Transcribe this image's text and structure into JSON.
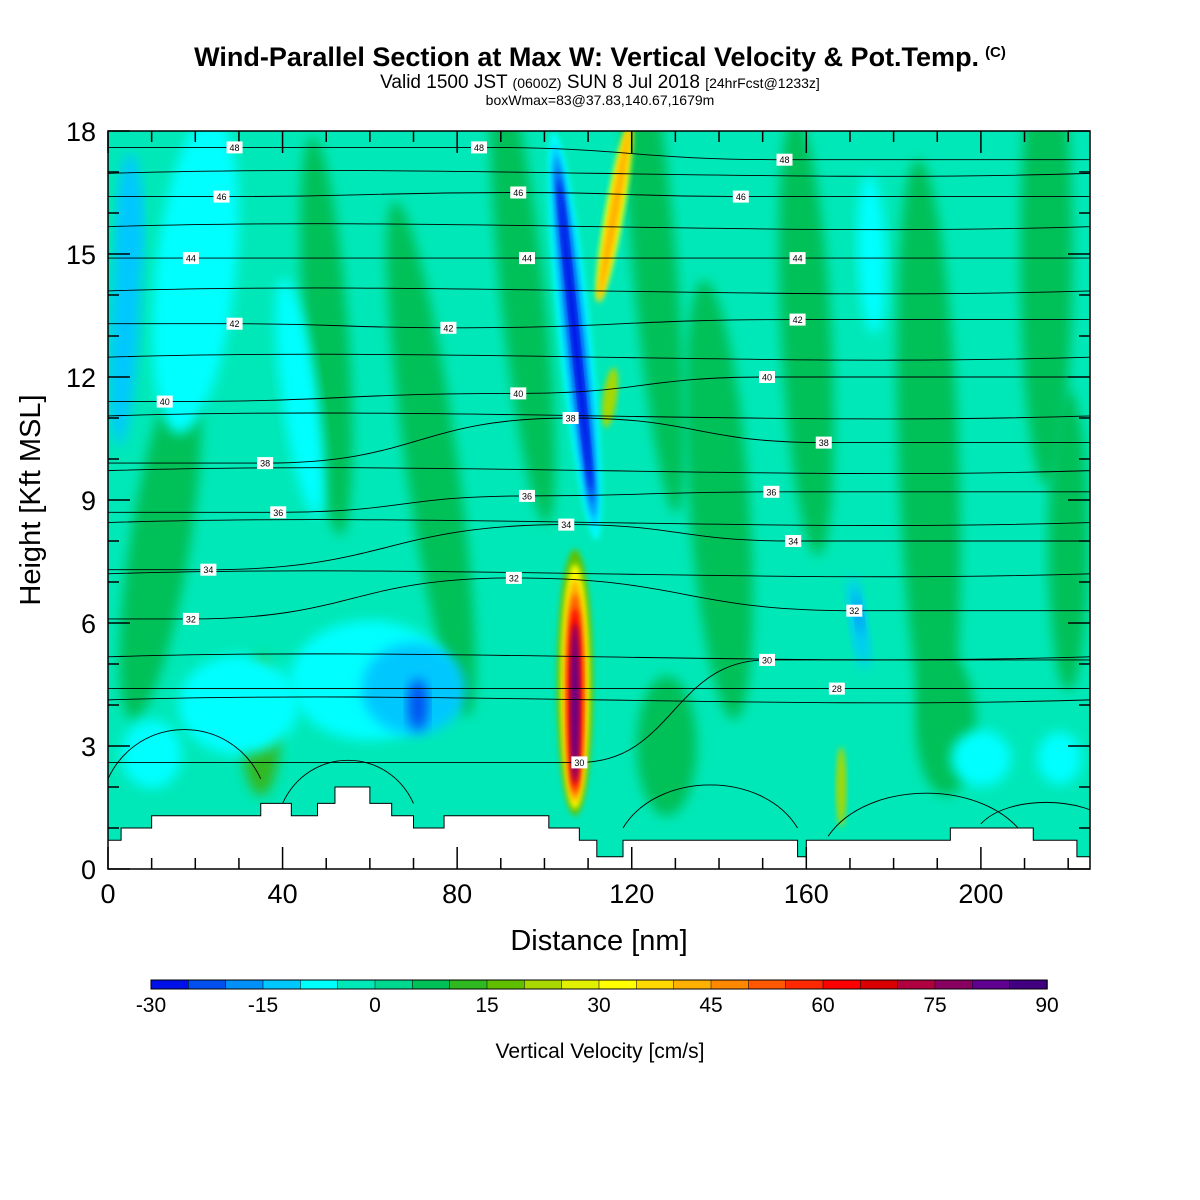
{
  "header": {
    "title": "Wind-Parallel Section at Max W: Vertical Velocity & Pot.Temp.",
    "title_mark": "(C)",
    "subtitle_a": "Valid 1500 JST",
    "subtitle_b": "(0600Z)",
    "subtitle_c": "SUN 8 Jul 2018",
    "subtitle_d": "[24hrFcst@1233z]",
    "subtitle2": "boxWmax=83@37.83,140.67,1679m"
  },
  "chart_data": {
    "type": "heatmap",
    "xlabel": "Distance [nm]",
    "ylabel": "Height [Kft MSL]",
    "xlim": [
      0,
      225
    ],
    "ylim": [
      0,
      18
    ],
    "x_ticks": [
      "0",
      "40",
      "80",
      "120",
      "160",
      "200"
    ],
    "y_ticks": [
      "0",
      "3",
      "6",
      "9",
      "12",
      "15",
      "18"
    ],
    "colorbar": {
      "label": "Vertical Velocity [cm/s]",
      "levels": [
        -30,
        -25,
        -20,
        -15,
        -10,
        -5,
        0,
        5,
        10,
        15,
        20,
        25,
        30,
        35,
        40,
        45,
        50,
        55,
        60,
        65,
        70,
        75,
        80,
        85,
        90
      ],
      "tick_labels": [
        "-30",
        "-15",
        "0",
        "15",
        "30",
        "45",
        "60",
        "75",
        "90"
      ],
      "colors": [
        "#0010e8",
        "#0050f0",
        "#0090f8",
        "#00c8ff",
        "#00ffff",
        "#00e8b8",
        "#00d890",
        "#00c058",
        "#30b820",
        "#60c000",
        "#a8d800",
        "#e0f000",
        "#ffff00",
        "#ffd800",
        "#ffb000",
        "#ff8800",
        "#ff5800",
        "#ff2800",
        "#ff0000",
        "#d80000",
        "#b00040",
        "#880060",
        "#600090",
        "#400080"
      ]
    },
    "theta_contours": [
      {
        "value": 28,
        "label": "28",
        "x": 167,
        "y": 4.4
      },
      {
        "value": 30,
        "label": "30",
        "x": 108,
        "y": 2.6
      },
      {
        "value": 30,
        "label": "30",
        "x": 151,
        "y": 5.1
      },
      {
        "value": 32,
        "label": "32",
        "x": 19,
        "y": 6.1
      },
      {
        "value": 32,
        "label": "32",
        "x": 93,
        "y": 7.1
      },
      {
        "value": 32,
        "label": "32",
        "x": 171,
        "y": 6.3
      },
      {
        "value": 34,
        "label": "34",
        "x": 23,
        "y": 7.3
      },
      {
        "value": 34,
        "label": "34",
        "x": 105,
        "y": 8.4
      },
      {
        "value": 34,
        "label": "34",
        "x": 157,
        "y": 8.0
      },
      {
        "value": 36,
        "label": "36",
        "x": 39,
        "y": 8.7
      },
      {
        "value": 36,
        "label": "36",
        "x": 96,
        "y": 9.1
      },
      {
        "value": 36,
        "label": "36",
        "x": 152,
        "y": 9.2
      },
      {
        "value": 38,
        "label": "38",
        "x": 36,
        "y": 9.9
      },
      {
        "value": 38,
        "label": "38",
        "x": 106,
        "y": 11.0
      },
      {
        "value": 38,
        "label": "38",
        "x": 164,
        "y": 10.4
      },
      {
        "value": 40,
        "label": "40",
        "x": 13,
        "y": 11.4
      },
      {
        "value": 40,
        "label": "40",
        "x": 94,
        "y": 11.6
      },
      {
        "value": 40,
        "label": "40",
        "x": 151,
        "y": 12.0
      },
      {
        "value": 42,
        "label": "42",
        "x": 29,
        "y": 13.3
      },
      {
        "value": 42,
        "label": "42",
        "x": 78,
        "y": 13.2
      },
      {
        "value": 42,
        "label": "42",
        "x": 158,
        "y": 13.4
      },
      {
        "value": 44,
        "label": "44",
        "x": 19,
        "y": 14.9
      },
      {
        "value": 44,
        "label": "44",
        "x": 96,
        "y": 14.9
      },
      {
        "value": 44,
        "label": "44",
        "x": 158,
        "y": 14.9
      },
      {
        "value": 46,
        "label": "46",
        "x": 26,
        "y": 16.4
      },
      {
        "value": 46,
        "label": "46",
        "x": 94,
        "y": 16.5
      },
      {
        "value": 46,
        "label": "46",
        "x": 145,
        "y": 16.4
      },
      {
        "value": 48,
        "label": "48",
        "x": 29,
        "y": 17.6
      },
      {
        "value": 48,
        "label": "48",
        "x": 85,
        "y": 17.6
      },
      {
        "value": 48,
        "label": "48",
        "x": 155,
        "y": 17.3
      }
    ],
    "terrain_profile": {
      "x": [
        0,
        3,
        3,
        10,
        10,
        35,
        35,
        42,
        42,
        48,
        48,
        52,
        52,
        60,
        60,
        65,
        65,
        70,
        70,
        77,
        77,
        101,
        101,
        108,
        108,
        112,
        112,
        118,
        118,
        158,
        158,
        160,
        160,
        193,
        193,
        212,
        212,
        222,
        222,
        225
      ],
      "y": [
        0.7,
        0.7,
        1.0,
        1.0,
        1.3,
        1.3,
        1.6,
        1.6,
        1.3,
        1.3,
        1.6,
        1.6,
        2.0,
        2.0,
        1.6,
        1.6,
        1.3,
        1.3,
        1.0,
        1.0,
        1.3,
        1.3,
        1.0,
        1.0,
        0.7,
        0.7,
        0.3,
        0.3,
        0.7,
        0.7,
        0.3,
        0.3,
        0.7,
        0.7,
        1.0,
        1.0,
        0.7,
        0.7,
        0.3,
        0.3
      ]
    },
    "features": [
      {
        "kind": "updraft",
        "x": 107,
        "y": [
          1.5,
          8.0
        ],
        "peak_cm_s": 83
      },
      {
        "kind": "downdraft",
        "x": 108,
        "y": [
          8.0,
          18.0
        ],
        "min_cm_s": -30
      },
      {
        "kind": "downdraft",
        "x": 172,
        "y": [
          5.0,
          7.0
        ],
        "min_cm_s": -15
      }
    ]
  }
}
